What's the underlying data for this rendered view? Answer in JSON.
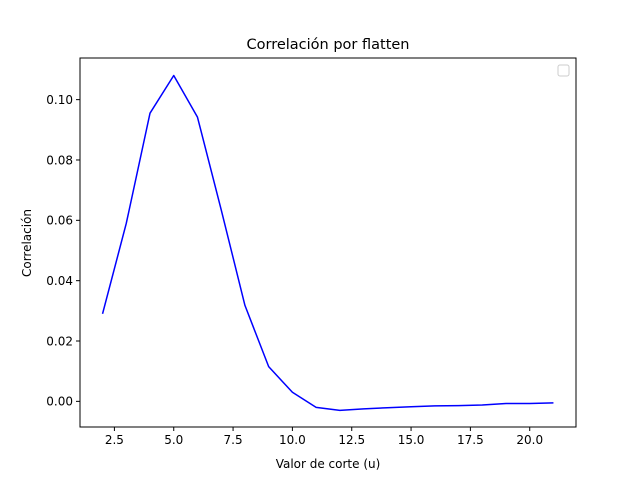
{
  "chart_data": {
    "type": "line",
    "title": "Correlación por flatten",
    "xlabel": "Valor de corte (u)",
    "ylabel": "Correlación",
    "xlim": [
      1.05,
      21.95
    ],
    "ylim": [
      -0.0085,
      0.1138
    ],
    "xticks": [
      2.5,
      5.0,
      7.5,
      10.0,
      12.5,
      15.0,
      17.5,
      20.0
    ],
    "xtick_labels": [
      "2.5",
      "5.0",
      "7.5",
      "10.0",
      "12.5",
      "15.0",
      "17.5",
      "20.0"
    ],
    "yticks": [
      0.0,
      0.02,
      0.04,
      0.06,
      0.08,
      0.1
    ],
    "ytick_labels": [
      "0.00",
      "0.02",
      "0.04",
      "0.06",
      "0.08",
      "0.10"
    ],
    "grid": false,
    "legend": {
      "position": "top-right",
      "entries": []
    },
    "series": [
      {
        "name": "",
        "color": "#0000ff",
        "x": [
          2,
          3,
          4,
          5,
          6,
          7,
          8,
          9,
          10,
          11,
          12,
          13,
          14,
          15,
          16,
          17,
          18,
          19,
          20,
          21
        ],
        "values": [
          0.029,
          0.059,
          0.0955,
          0.108,
          0.0942,
          0.0635,
          0.0318,
          0.0115,
          0.003,
          -0.002,
          -0.003,
          -0.0025,
          -0.0021,
          -0.0018,
          -0.0015,
          -0.0014,
          -0.0012,
          -0.0007,
          -0.0007,
          -0.0005
        ]
      }
    ]
  }
}
